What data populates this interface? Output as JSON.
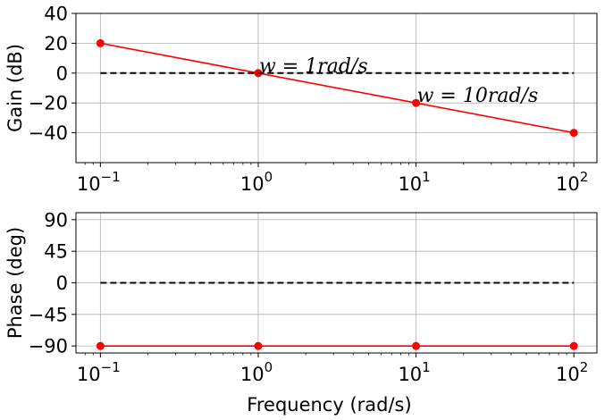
{
  "chart_data": [
    {
      "type": "line",
      "id": "gain",
      "xlabel": "",
      "ylabel": "Gain (dB)",
      "xscale": "log",
      "xlim": [
        0.07,
        140
      ],
      "ylim": [
        -60,
        40
      ],
      "yticks": [
        40,
        20,
        0,
        -20,
        -40
      ],
      "ytick_labels": [
        "40",
        "20",
        "0",
        "−20",
        "−40"
      ],
      "xticks": [
        0.1,
        1,
        10,
        100
      ],
      "xtick_labels": [
        {
          "base": "10",
          "exp": "−1"
        },
        {
          "base": "10",
          "exp": "0"
        },
        {
          "base": "10",
          "exp": "1"
        },
        {
          "base": "10",
          "exp": "2"
        }
      ],
      "grid": true,
      "series": [
        {
          "x": [
            0.1,
            1,
            10,
            100
          ],
          "values": [
            20,
            0,
            -20,
            -40
          ],
          "color": "#ff0000",
          "style": "solid",
          "marker": "circle"
        },
        {
          "x": [
            0.1,
            100
          ],
          "values": [
            0,
            0
          ],
          "color": "#000000",
          "style": "dashed",
          "marker": "none"
        }
      ],
      "annotations": [
        {
          "text": "w = 1rad/s",
          "x": 1,
          "y": 0
        },
        {
          "text": "w = 10rad/s",
          "x": 10,
          "y": -20
        }
      ]
    },
    {
      "type": "line",
      "id": "phase",
      "xlabel": "Frequency (rad/s)",
      "ylabel": "Phase (deg)",
      "xscale": "log",
      "xlim": [
        0.07,
        140
      ],
      "ylim": [
        -100,
        100
      ],
      "yticks": [
        90,
        45,
        0,
        -45,
        -90
      ],
      "ytick_labels": [
        "90",
        "45",
        "0",
        "−45",
        "−90"
      ],
      "xticks": [
        0.1,
        1,
        10,
        100
      ],
      "xtick_labels": [
        {
          "base": "10",
          "exp": "−1"
        },
        {
          "base": "10",
          "exp": "0"
        },
        {
          "base": "10",
          "exp": "1"
        },
        {
          "base": "10",
          "exp": "2"
        }
      ],
      "grid": true,
      "series": [
        {
          "x": [
            0.1,
            1,
            10,
            100
          ],
          "values": [
            -90,
            -90,
            -90,
            -90
          ],
          "color": "#ff0000",
          "style": "solid",
          "marker": "circle"
        },
        {
          "x": [
            0.1,
            100
          ],
          "values": [
            0,
            0
          ],
          "color": "#000000",
          "style": "dashed",
          "marker": "none"
        }
      ],
      "annotations": []
    }
  ]
}
